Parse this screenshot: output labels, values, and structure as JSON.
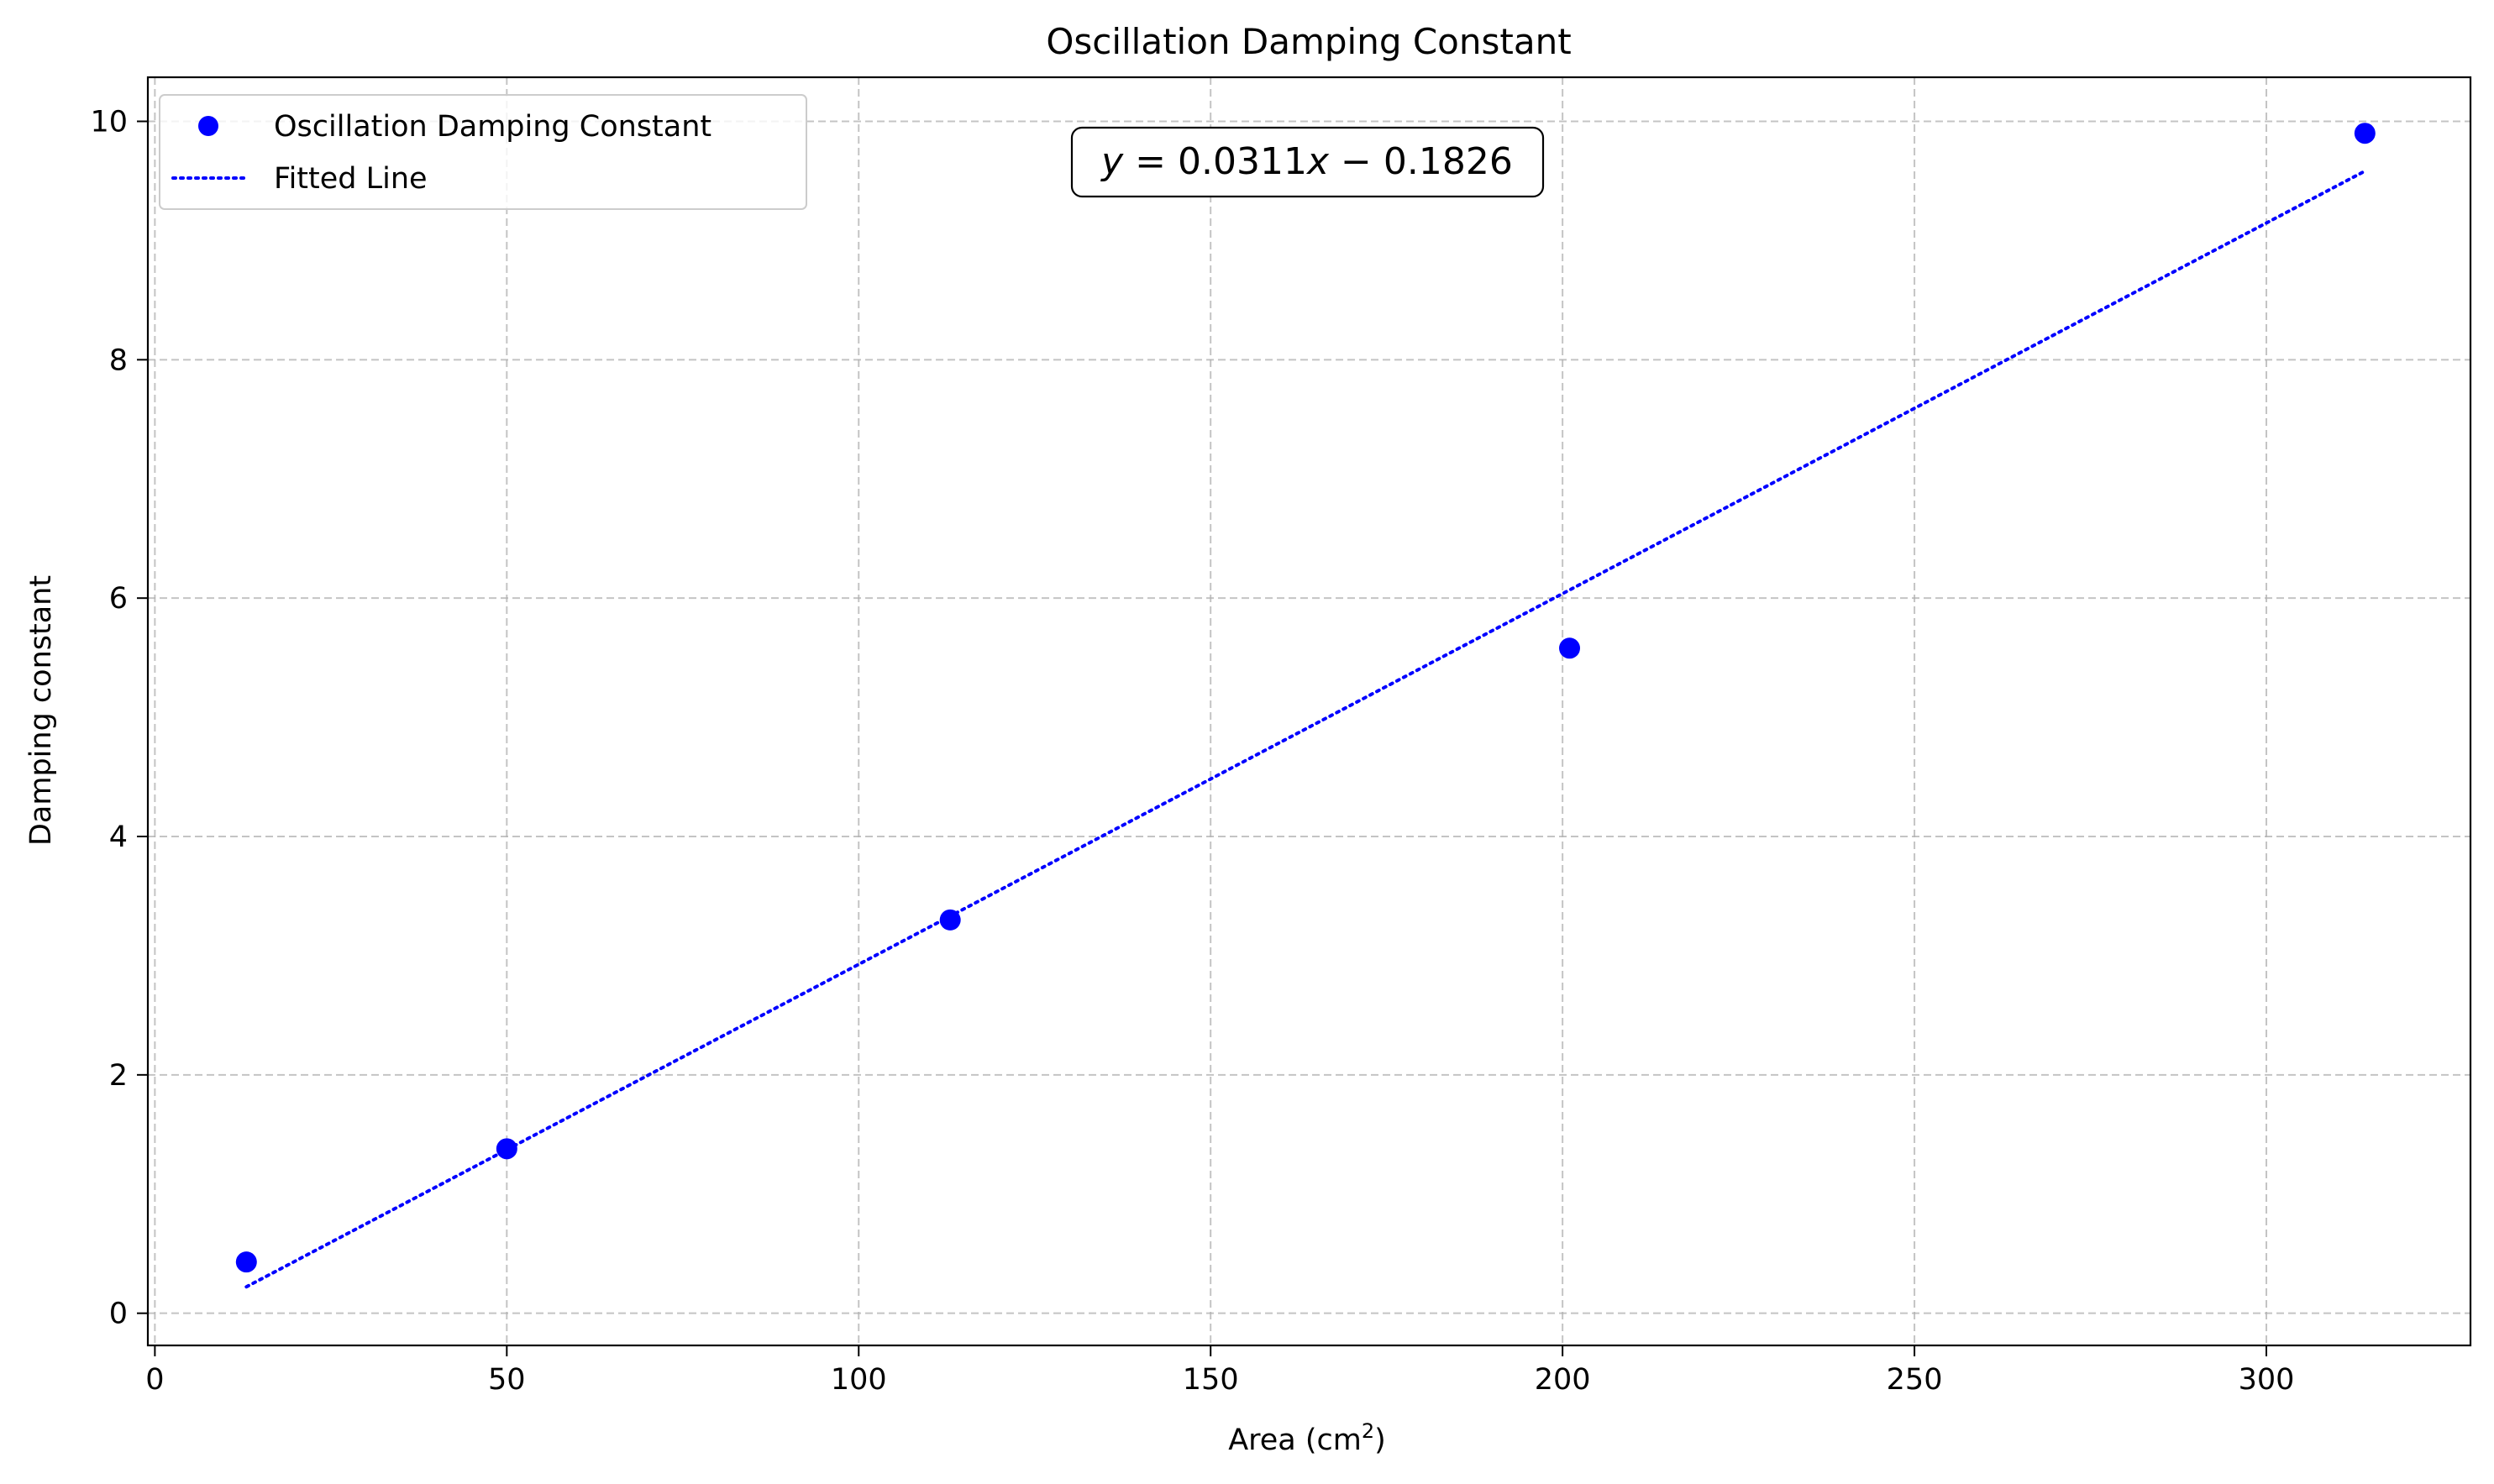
{
  "chart_data": {
    "type": "scatter",
    "title": "Oscillation Damping Constant",
    "xlabel_main": "Area (cm",
    "xlabel_sup": "2",
    "xlabel_close": ")",
    "ylabel": "Damping constant",
    "xlim": [
      -1,
      329
    ],
    "ylim": [
      -0.27,
      10.37
    ],
    "xticks": [
      0,
      50,
      100,
      150,
      200,
      250,
      300
    ],
    "yticks": [
      0,
      2,
      4,
      6,
      8,
      10
    ],
    "grid": true,
    "legend_placement": "upper-left",
    "series": [
      {
        "name": "Oscillation Damping Constant",
        "kind": "scatter",
        "color": "#0000ff",
        "x": [
          13,
          50,
          113,
          201,
          314
        ],
        "y": [
          0.43,
          1.38,
          3.3,
          5.58,
          9.9
        ]
      },
      {
        "name": "Fitted Line",
        "kind": "line",
        "style": "dotted",
        "color": "#0000ff",
        "x": [
          13,
          314
        ],
        "y": [
          0.2217,
          9.5828
        ]
      }
    ],
    "annotation": {
      "y_var": "y",
      "equals": " = ",
      "coef": "0.0311",
      "x_var": "x",
      "minus": " − ",
      "intercept": "0.1826"
    }
  }
}
